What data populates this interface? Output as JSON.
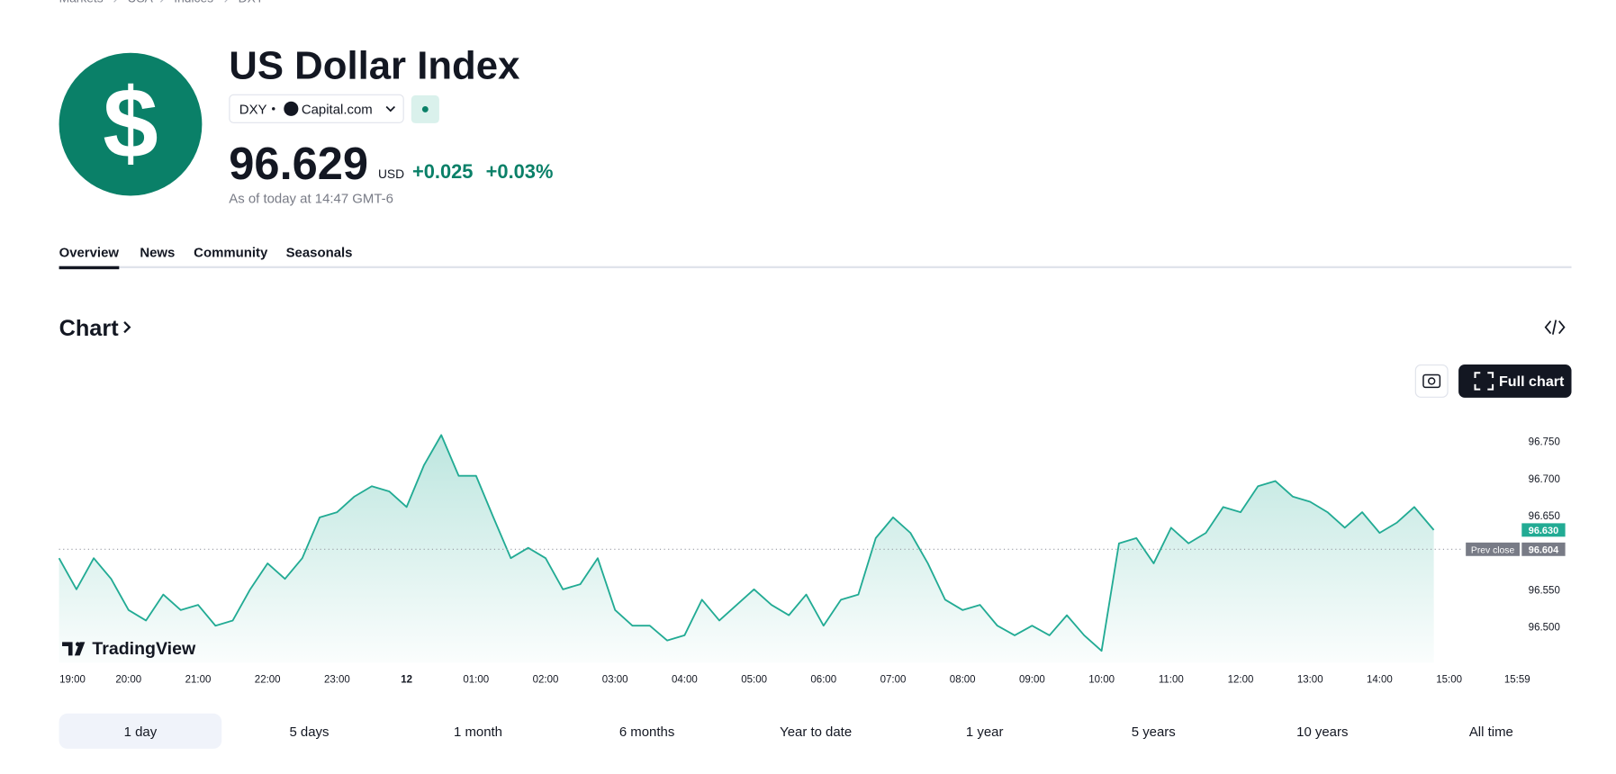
{
  "breadcrumb": [
    "Markets",
    "USA",
    "Indices",
    "DXY"
  ],
  "header": {
    "title": "US Dollar Index",
    "symbol": "DXY",
    "source": "Capital.com",
    "price": "96.629",
    "currency": "USD",
    "change": "+0.025",
    "change_percent": "+0.03%",
    "as_of": "As of today at 14:47 GMT-6"
  },
  "tabs": [
    "Overview",
    "News",
    "Community",
    "Seasonals"
  ],
  "section_title": "Chart",
  "full_chart_button": "Full chart",
  "logo_text": "TradingView",
  "chart_data": {
    "type": "area",
    "x": [
      0,
      0.25,
      0.5,
      0.75,
      1,
      1.25,
      1.5,
      1.75,
      2,
      2.25,
      2.5,
      2.75,
      3,
      3.25,
      3.5,
      3.75,
      4,
      4.25,
      4.5,
      4.75,
      5,
      5.25,
      5.5,
      5.75,
      6,
      6.25,
      6.5,
      6.75,
      7,
      7.25,
      7.5,
      7.75,
      8,
      8.25,
      8.5,
      8.75,
      9,
      9.25,
      9.5,
      9.75,
      10,
      10.25,
      10.5,
      10.75,
      11,
      11.25,
      11.5,
      11.75,
      12,
      12.25,
      12.5,
      12.75,
      13,
      13.25,
      13.5,
      13.75,
      14,
      14.25,
      14.5,
      14.75,
      15,
      15.25,
      15.5,
      15.75,
      16,
      16.25,
      16.5,
      16.75,
      17,
      17.25,
      17.5,
      17.75,
      18,
      18.25,
      18.5,
      18.75,
      19,
      19.25,
      19.5,
      19.78
    ],
    "series": [
      {
        "name": "DXY",
        "color": "#22ab94",
        "values": [
          96.592,
          96.55,
          96.592,
          96.564,
          96.522,
          96.508,
          96.543,
          96.522,
          96.529,
          96.501,
          96.508,
          96.55,
          96.585,
          96.564,
          96.592,
          96.647,
          96.654,
          96.675,
          96.689,
          96.682,
          96.661,
          96.717,
          96.758,
          96.703,
          96.703,
          96.647,
          96.592,
          96.606,
          96.592,
          96.55,
          96.557,
          96.592,
          96.522,
          96.501,
          96.501,
          96.481,
          96.488,
          96.536,
          96.508,
          96.529,
          96.55,
          96.529,
          96.515,
          96.543,
          96.501,
          96.536,
          96.543,
          96.619,
          96.647,
          96.626,
          96.585,
          96.536,
          96.522,
          96.529,
          96.501,
          96.488,
          96.501,
          96.488,
          96.515,
          96.488,
          96.467,
          96.612,
          96.619,
          96.585,
          96.633,
          96.612,
          96.626,
          96.661,
          96.654,
          96.689,
          96.696,
          96.675,
          96.668,
          96.654,
          96.633,
          96.654,
          96.626,
          96.64,
          96.661,
          96.63
        ]
      }
    ],
    "xlim": [
      0,
      21.06
    ],
    "xticks": [
      {
        "value": 0,
        "label": "19:00"
      },
      {
        "value": 1,
        "label": "20:00"
      },
      {
        "value": 2,
        "label": "21:00"
      },
      {
        "value": 3,
        "label": "22:00"
      },
      {
        "value": 4,
        "label": "23:00"
      },
      {
        "value": 5,
        "label": "12"
      },
      {
        "value": 6,
        "label": "01:00"
      },
      {
        "value": 7,
        "label": "02:00"
      },
      {
        "value": 8,
        "label": "03:00"
      },
      {
        "value": 9,
        "label": "04:00"
      },
      {
        "value": 10,
        "label": "05:00"
      },
      {
        "value": 11,
        "label": "06:00"
      },
      {
        "value": 12,
        "label": "07:00"
      },
      {
        "value": 13,
        "label": "08:00"
      },
      {
        "value": 14,
        "label": "09:00"
      },
      {
        "value": 15,
        "label": "10:00"
      },
      {
        "value": 16,
        "label": "11:00"
      },
      {
        "value": 17,
        "label": "12:00"
      },
      {
        "value": 18,
        "label": "13:00"
      },
      {
        "value": 19,
        "label": "14:00"
      },
      {
        "value": 20,
        "label": "15:00"
      },
      {
        "value": 20.98,
        "label": "15:59"
      }
    ],
    "ylim": [
      96.451,
      96.786
    ],
    "yticks": [
      {
        "value": 96.5,
        "label": "96.500"
      },
      {
        "value": 96.55,
        "label": "96.550"
      },
      {
        "value": 96.65,
        "label": "96.650"
      },
      {
        "value": 96.7,
        "label": "96.700"
      },
      {
        "value": 96.75,
        "label": "96.750"
      }
    ],
    "last_price": {
      "value": 96.63,
      "label": "96.630"
    },
    "prev_close": {
      "name": "Prev close",
      "value": 96.604,
      "label": "96.604"
    },
    "ranges": [
      "1 day",
      "5 days",
      "1 month",
      "6 months",
      "Year to date",
      "1 year",
      "5 years",
      "10 years",
      "All time"
    ]
  }
}
